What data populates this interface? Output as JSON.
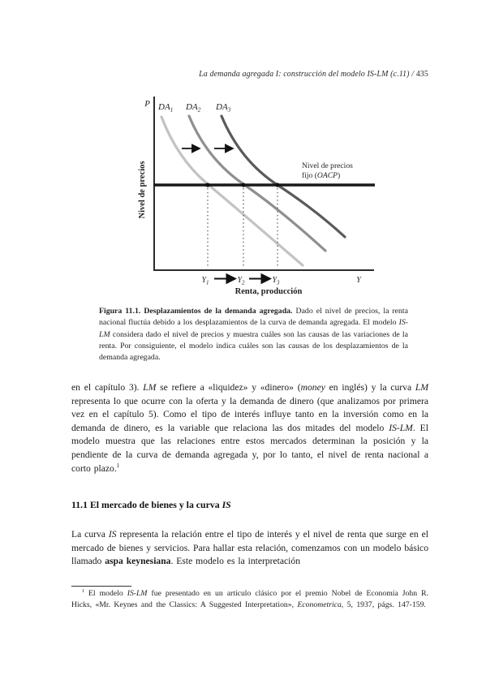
{
  "header": {
    "running_title": "La demanda agregada I: construcción del modelo IS-LM (c.11)",
    "separator": " / ",
    "page_number": "435"
  },
  "figure": {
    "p_axis_label": "P",
    "curve_labels": [
      {
        "base": "DA",
        "sub": "1"
      },
      {
        "base": "DA",
        "sub": "2"
      },
      {
        "base": "DA",
        "sub": "3"
      }
    ],
    "fixed_price_line1": "Nivel de precios",
    "fixed_price_line2_pre": "fijo (",
    "fixed_price_line2_italic": "OACP",
    "fixed_price_line2_post": ")",
    "y_axis_title": "Nivel de precios",
    "x_axis_title": "Renta, producción",
    "x_ticks": [
      {
        "base": "Y",
        "sub": "1"
      },
      {
        "base": "Y",
        "sub": "2"
      },
      {
        "base": "Y",
        "sub": "3"
      }
    ],
    "x_axis_end_label": "Y",
    "colors": {
      "curve_da1": "#c3c3c3",
      "curve_da2": "#8f8f8f",
      "curve_da3": "#5a5a5a",
      "fixed_line": "#1a1a1a",
      "axis": "#2b2b2b",
      "arrow": "#111111",
      "dotted": "#555555"
    }
  },
  "caption": {
    "rich": [
      {
        "t": "Figura 11.1. Desplazamientos de la demanda agregada.",
        "b": true
      },
      {
        "t": " Dado el nivel de precios, la renta nacional fluctúa debido a los desplazamientos de la curva de demanda agregada. El modelo "
      },
      {
        "t": "IS-LM",
        "i": true
      },
      {
        "t": " considera dado el nivel de precios y muestra cuáles son las causas de las variaciones de la renta. Por consiguiente, el modelo indica cuáles son las causas de los desplazamientos de la demanda agregada."
      }
    ]
  },
  "paragraphs": {
    "p1": [
      {
        "t": "en el capítulo 3). "
      },
      {
        "t": "LM",
        "i": true
      },
      {
        "t": " se refiere a «liquidez» y «dinero» ("
      },
      {
        "t": "money",
        "i": true
      },
      {
        "t": " en inglés) y la curva "
      },
      {
        "t": "LM",
        "i": true
      },
      {
        "t": " representa lo que ocurre con la oferta y la demanda de dinero (que analizamos por primera vez en el capítulo 5). Como el tipo de interés influye tanto en la inversión como en la demanda de dinero, es la variable que relaciona las dos mitades del modelo "
      },
      {
        "t": "IS-LM",
        "i": true
      },
      {
        "t": ". El modelo muestra que las relaciones entre estos mercados determinan la posición y la pendiente de la curva de demanda agregada y, por lo tanto, el nivel de renta nacional a corto plazo."
      },
      {
        "t": "1",
        "sup": true
      }
    ],
    "p2": [
      {
        "t": "La curva "
      },
      {
        "t": "IS",
        "i": true
      },
      {
        "t": " representa la relación entre el tipo de interés y el nivel de renta que surge en el mercado de bienes y servicios. Para hallar esta relación, comenzamos con un modelo básico llamado "
      },
      {
        "t": "aspa keynesiana",
        "b": true
      },
      {
        "t": ". Este modelo es la interpretación"
      }
    ]
  },
  "section_heading": {
    "rich": [
      {
        "t": "11.1 El mercado de bienes y la curva ",
        "b": true
      },
      {
        "t": "IS",
        "b": true,
        "i": true
      }
    ]
  },
  "footnote": {
    "rich": [
      {
        "t": "1",
        "sup": true
      },
      {
        "t": " El modelo "
      },
      {
        "t": "IS-LM",
        "i": true
      },
      {
        "t": " fue presentado en un artículo clásico por el premio Nobel de Economía John R. Hicks, «Mr. Keynes and the Classics: A Suggested Interpretation», "
      },
      {
        "t": "Econometrica",
        "i": true
      },
      {
        "t": ", 5, 1937, págs. 147-159."
      }
    ]
  }
}
